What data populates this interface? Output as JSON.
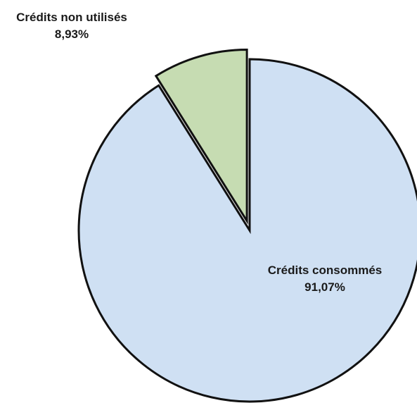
{
  "chart_data": {
    "type": "pie",
    "title": "",
    "slices": [
      {
        "label": "Crédits consommés",
        "value": 91.07,
        "value_label": "91,07%",
        "color": "#cfe0f3",
        "exploded": false
      },
      {
        "label": "Crédits non utilisés",
        "value": 8.93,
        "value_label": "8,93%",
        "color": "#c6dcb2",
        "exploded": true
      }
    ],
    "start_angle_deg": 0,
    "direction": "clockwise",
    "stroke_color": "#111111",
    "legend": "none"
  }
}
